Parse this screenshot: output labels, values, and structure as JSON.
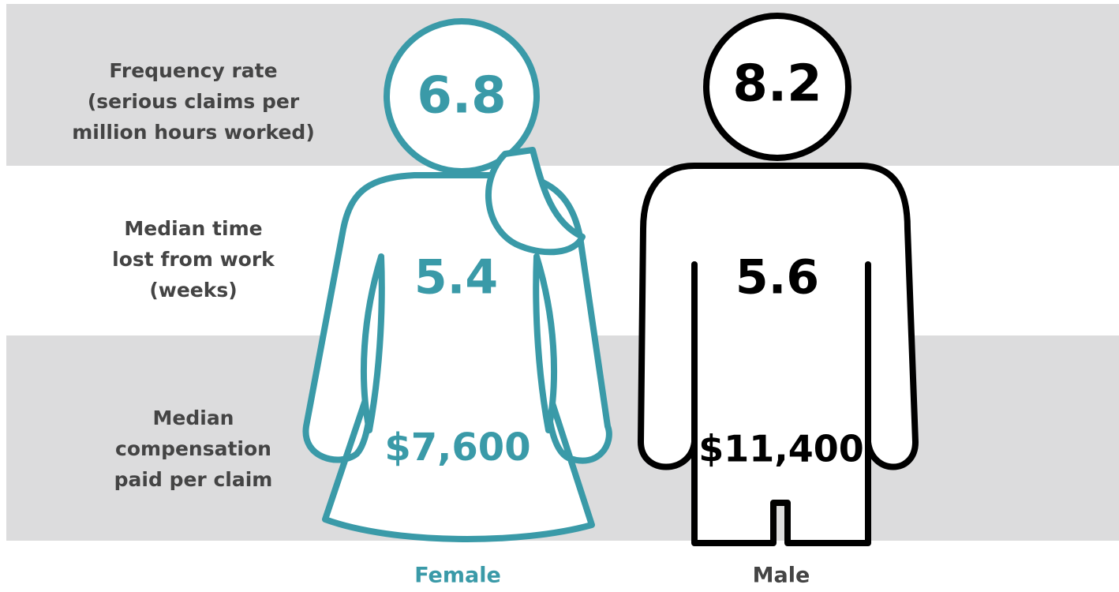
{
  "rows": [
    {
      "label": [
        "Frequency rate",
        "(serious claims per",
        "million hours worked)"
      ]
    },
    {
      "label": [
        "Median time",
        "lost from work",
        "(weeks)"
      ]
    },
    {
      "label": [
        "Median",
        "compensation",
        "paid per claim"
      ]
    }
  ],
  "groups": [
    {
      "name": "Female",
      "values": [
        "6.8",
        "5.4",
        "$7,600"
      ]
    },
    {
      "name": "Male",
      "values": [
        "8.2",
        "5.6",
        "$11,400"
      ]
    }
  ]
}
